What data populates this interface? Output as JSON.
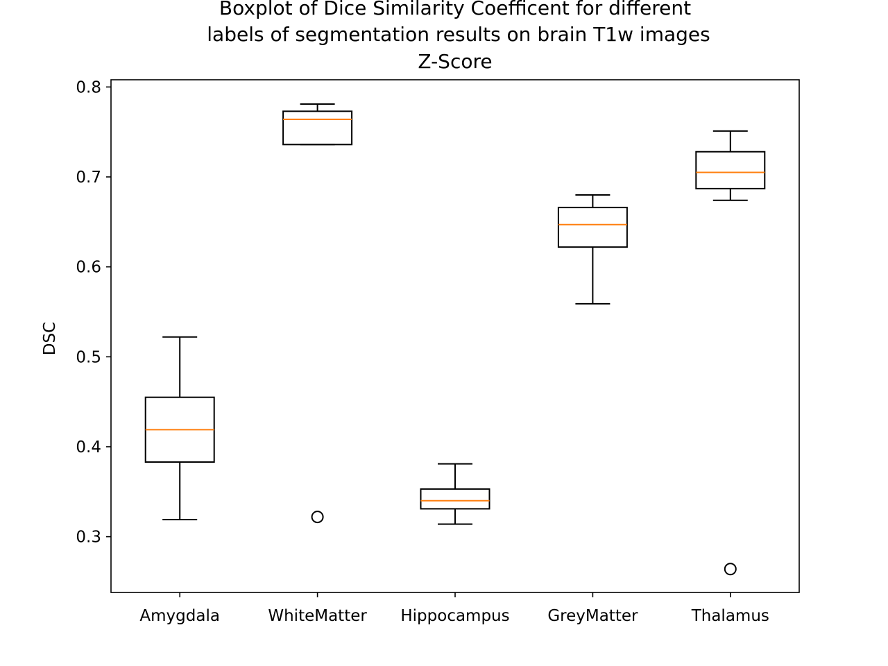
{
  "chart_data": {
    "type": "boxplot",
    "title_lines": [
      "Boxplot of Dice Similarity Coefficent for different",
      "labels of segmentation results on brain T1w images",
      "Z-Score"
    ],
    "xlabel": "",
    "ylabel": "DSC",
    "ylim": [
      0.238,
      0.808
    ],
    "yticks": [
      0.3,
      0.4,
      0.5,
      0.6,
      0.7,
      0.8
    ],
    "ytick_labels": [
      "0.3",
      "0.4",
      "0.5",
      "0.6",
      "0.7",
      "0.8"
    ],
    "grid": false,
    "categories": [
      "Amygdala",
      "WhiteMatter",
      "Hippocampus",
      "GreyMatter",
      "Thalamus"
    ],
    "boxes": [
      {
        "whisker_low": 0.319,
        "q1": 0.383,
        "median": 0.419,
        "q3": 0.455,
        "whisker_high": 0.522,
        "outliers": []
      },
      {
        "whisker_low": 0.736,
        "q1": 0.736,
        "median": 0.764,
        "q3": 0.773,
        "whisker_high": 0.781,
        "outliers": [
          0.322
        ]
      },
      {
        "whisker_low": 0.314,
        "q1": 0.331,
        "median": 0.34,
        "q3": 0.353,
        "whisker_high": 0.381,
        "outliers": []
      },
      {
        "whisker_low": 0.559,
        "q1": 0.622,
        "median": 0.647,
        "q3": 0.666,
        "whisker_high": 0.68,
        "outliers": []
      },
      {
        "whisker_low": 0.674,
        "q1": 0.687,
        "median": 0.705,
        "q3": 0.728,
        "whisker_high": 0.751,
        "outliers": [
          0.264
        ]
      }
    ],
    "colors": {
      "box": "#000000",
      "median": "#ff7f0e",
      "outlier": "#000000"
    }
  }
}
